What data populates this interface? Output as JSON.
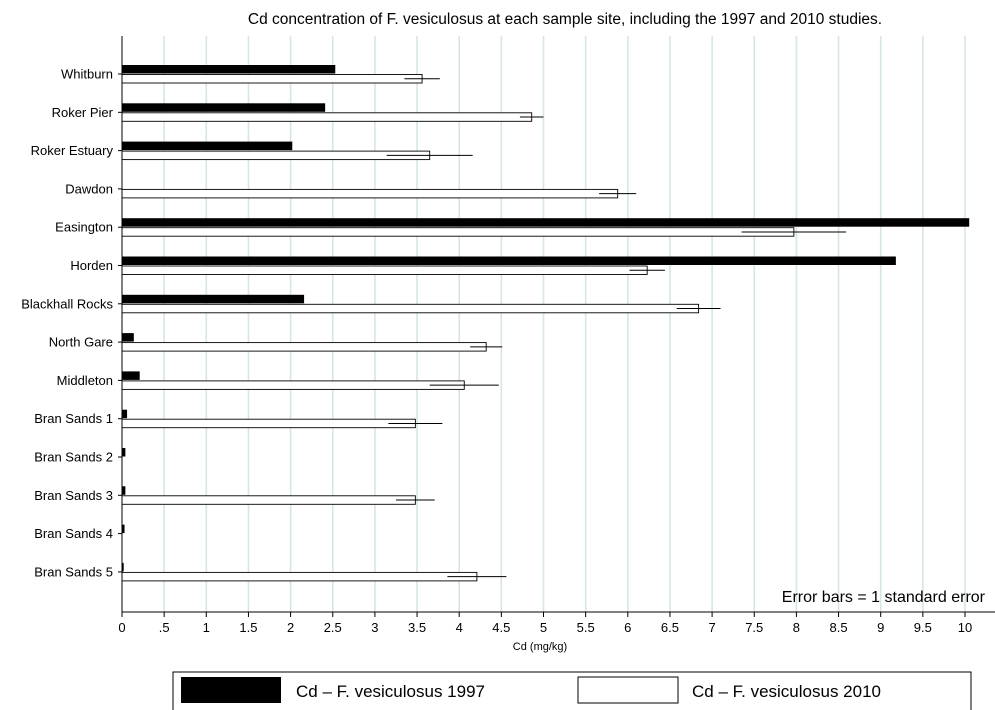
{
  "chart_data": {
    "type": "bar",
    "orientation": "horizontal",
    "title": "Cd concentration of F. vesiculosus at each sample site, including the 1997 and 2010 studies.",
    "xlabel": "Cd (mg/kg)",
    "ylabel": "",
    "xlim": [
      0,
      10.5
    ],
    "x_ticks": [
      "0",
      ".5",
      "1",
      "1.5",
      "2",
      "2.5",
      "3",
      "3.5",
      "4",
      "4.5",
      "5",
      "5.5",
      "6",
      "6.5",
      "7",
      "7.5",
      "8",
      "8.5",
      "9",
      "9.5",
      "10"
    ],
    "grid": "vertical",
    "categories": [
      "Whitburn",
      "Roker Pier",
      "Roker Estuary",
      "Dawdon",
      "Easington",
      "Horden",
      "Blackhall Rocks",
      "North Gare",
      "Middleton",
      "Bran Sands 1",
      "Bran Sands 2",
      "Bran Sands 3",
      "Bran Sands 4",
      "Bran Sands 5"
    ],
    "series": [
      {
        "name": "Cd – F. vesiculosus 1997",
        "color": "#000000",
        "values": [
          2.53,
          2.41,
          2.02,
          null,
          10.05,
          9.18,
          2.16,
          0.14,
          0.21,
          0.06,
          0.04,
          0.04,
          0.03,
          0.02
        ]
      },
      {
        "name": "Cd – F. vesiculosus 2010",
        "color": "#ffffff",
        "values": [
          3.56,
          4.86,
          3.65,
          5.88,
          7.97,
          6.23,
          6.84,
          4.32,
          4.06,
          3.48,
          null,
          3.48,
          null,
          4.21
        ],
        "errors": [
          0.21,
          0.14,
          0.51,
          0.22,
          0.62,
          0.21,
          0.26,
          0.19,
          0.41,
          0.32,
          null,
          0.23,
          null,
          0.35
        ]
      }
    ],
    "note": "Error bars = 1 standard error",
    "legend_position": "bottom"
  }
}
